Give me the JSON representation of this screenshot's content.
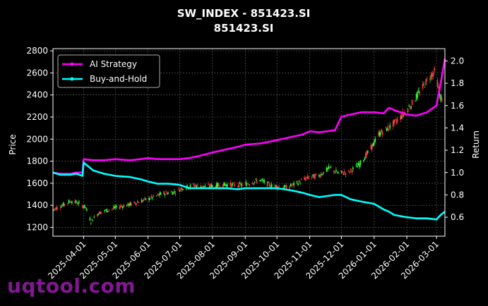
{
  "chart_data": {
    "type": "line",
    "title": "SW_INDEX - 851423.SI",
    "subtitle": "851423.SI",
    "ylabel": "Price",
    "y2label": "Return",
    "xlabel": "",
    "ylim": [
      1120,
      2820
    ],
    "y2lim": [
      0.43,
      2.11
    ],
    "xlim": [
      "2025-03-03",
      "2026-03-09"
    ],
    "grid": true,
    "legend": "top-left",
    "x_ticks": [
      "2025-04-01",
      "2025-05-01",
      "2025-06-01",
      "2025-07-01",
      "2025-08-01",
      "2025-09-01",
      "2025-10-01",
      "2025-11-01",
      "2025-12-01",
      "2026-01-01",
      "2026-02-01",
      "2026-03-01"
    ],
    "y_ticks": [
      1200,
      1400,
      1600,
      1800,
      2000,
      2200,
      2400,
      2600,
      2800
    ],
    "y2_ticks": [
      0.6,
      0.8,
      1.0,
      1.2,
      1.4,
      1.6,
      1.8,
      2.0
    ],
    "series": [
      {
        "name": "AI Strategy",
        "color": "#ff00ff",
        "axis": "right",
        "points": [
          [
            "2025-03-03",
            1.0
          ],
          [
            "2025-03-10",
            0.99
          ],
          [
            "2025-03-20",
            0.99
          ],
          [
            "2025-03-25",
            1.0
          ],
          [
            "2025-03-31",
            1.0
          ],
          [
            "2025-04-01",
            1.12
          ],
          [
            "2025-04-10",
            1.11
          ],
          [
            "2025-04-20",
            1.11
          ],
          [
            "2025-05-01",
            1.12
          ],
          [
            "2025-05-15",
            1.11
          ],
          [
            "2025-05-25",
            1.12
          ],
          [
            "2025-06-01",
            1.13
          ],
          [
            "2025-06-10",
            1.12
          ],
          [
            "2025-06-20",
            1.12
          ],
          [
            "2025-07-01",
            1.12
          ],
          [
            "2025-07-10",
            1.13
          ],
          [
            "2025-07-20",
            1.15
          ],
          [
            "2025-08-01",
            1.18
          ],
          [
            "2025-08-15",
            1.21
          ],
          [
            "2025-08-25",
            1.23
          ],
          [
            "2025-09-01",
            1.25
          ],
          [
            "2025-09-15",
            1.26
          ],
          [
            "2025-10-01",
            1.29
          ],
          [
            "2025-10-15",
            1.32
          ],
          [
            "2025-10-25",
            1.34
          ],
          [
            "2025-11-01",
            1.37
          ],
          [
            "2025-11-10",
            1.36
          ],
          [
            "2025-11-25",
            1.38
          ],
          [
            "2025-12-01",
            1.5
          ],
          [
            "2025-12-10",
            1.52
          ],
          [
            "2025-12-20",
            1.54
          ],
          [
            "2026-01-01",
            1.54
          ],
          [
            "2026-01-10",
            1.53
          ],
          [
            "2026-01-15",
            1.58
          ],
          [
            "2026-01-20",
            1.56
          ],
          [
            "2026-02-01",
            1.52
          ],
          [
            "2026-02-10",
            1.51
          ],
          [
            "2026-02-20",
            1.54
          ],
          [
            "2026-03-01",
            1.6
          ],
          [
            "2026-03-05",
            1.8
          ],
          [
            "2026-03-09",
            2.02
          ]
        ]
      },
      {
        "name": "Buy-and-Hold",
        "color": "#00ffff",
        "axis": "right",
        "points": [
          [
            "2025-03-03",
            1.0
          ],
          [
            "2025-03-10",
            0.98
          ],
          [
            "2025-03-20",
            0.98
          ],
          [
            "2025-03-25",
            0.99
          ],
          [
            "2025-03-31",
            0.97
          ],
          [
            "2025-04-01",
            1.09
          ],
          [
            "2025-04-10",
            1.02
          ],
          [
            "2025-04-20",
            0.99
          ],
          [
            "2025-05-01",
            0.97
          ],
          [
            "2025-05-15",
            0.96
          ],
          [
            "2025-05-25",
            0.94
          ],
          [
            "2025-06-01",
            0.92
          ],
          [
            "2025-06-10",
            0.9
          ],
          [
            "2025-06-20",
            0.9
          ],
          [
            "2025-07-01",
            0.89
          ],
          [
            "2025-07-10",
            0.86
          ],
          [
            "2025-07-20",
            0.86
          ],
          [
            "2025-08-01",
            0.86
          ],
          [
            "2025-08-15",
            0.86
          ],
          [
            "2025-08-25",
            0.85
          ],
          [
            "2025-09-01",
            0.86
          ],
          [
            "2025-09-15",
            0.86
          ],
          [
            "2025-10-01",
            0.86
          ],
          [
            "2025-10-15",
            0.84
          ],
          [
            "2025-10-25",
            0.82
          ],
          [
            "2025-11-01",
            0.8
          ],
          [
            "2025-11-10",
            0.78
          ],
          [
            "2025-11-25",
            0.8
          ],
          [
            "2025-12-01",
            0.8
          ],
          [
            "2025-12-10",
            0.76
          ],
          [
            "2025-12-20",
            0.74
          ],
          [
            "2026-01-01",
            0.72
          ],
          [
            "2026-01-10",
            0.67
          ],
          [
            "2026-01-15",
            0.65
          ],
          [
            "2026-01-20",
            0.62
          ],
          [
            "2026-02-01",
            0.6
          ],
          [
            "2026-02-10",
            0.59
          ],
          [
            "2026-02-20",
            0.59
          ],
          [
            "2026-03-01",
            0.58
          ],
          [
            "2026-03-05",
            0.62
          ],
          [
            "2026-03-09",
            0.65
          ]
        ]
      }
    ],
    "price_candles": [
      [
        "2025-03-03",
        1360
      ],
      [
        "2025-03-12",
        1400
      ],
      [
        "2025-03-20",
        1440
      ],
      [
        "2025-03-27",
        1420
      ],
      [
        "2025-04-03",
        1380
      ],
      [
        "2025-04-08",
        1250
      ],
      [
        "2025-04-15",
        1330
      ],
      [
        "2025-04-25",
        1360
      ],
      [
        "2025-05-06",
        1390
      ],
      [
        "2025-05-16",
        1410
      ],
      [
        "2025-05-26",
        1440
      ],
      [
        "2025-06-05",
        1470
      ],
      [
        "2025-06-16",
        1510
      ],
      [
        "2025-06-26",
        1520
      ],
      [
        "2025-07-04",
        1560
      ],
      [
        "2025-07-15",
        1580
      ],
      [
        "2025-07-25",
        1570
      ],
      [
        "2025-08-05",
        1580
      ],
      [
        "2025-08-15",
        1590
      ],
      [
        "2025-08-25",
        1580
      ],
      [
        "2025-09-05",
        1600
      ],
      [
        "2025-09-15",
        1630
      ],
      [
        "2025-09-25",
        1580
      ],
      [
        "2025-10-10",
        1560
      ],
      [
        "2025-10-20",
        1600
      ],
      [
        "2025-10-30",
        1650
      ],
      [
        "2025-11-10",
        1670
      ],
      [
        "2025-11-20",
        1740
      ],
      [
        "2025-11-28",
        1690
      ],
      [
        "2025-12-08",
        1700
      ],
      [
        "2025-12-18",
        1770
      ],
      [
        "2025-12-28",
        1900
      ],
      [
        "2026-01-06",
        2050
      ],
      [
        "2026-01-16",
        2110
      ],
      [
        "2026-01-26",
        2200
      ],
      [
        "2026-02-05",
        2310
      ],
      [
        "2026-02-14",
        2440
      ],
      [
        "2026-02-22",
        2560
      ],
      [
        "2026-02-28",
        2620
      ],
      [
        "2026-03-04",
        2400
      ],
      [
        "2026-03-09",
        2300
      ]
    ]
  },
  "watermark": "uqtool.com"
}
